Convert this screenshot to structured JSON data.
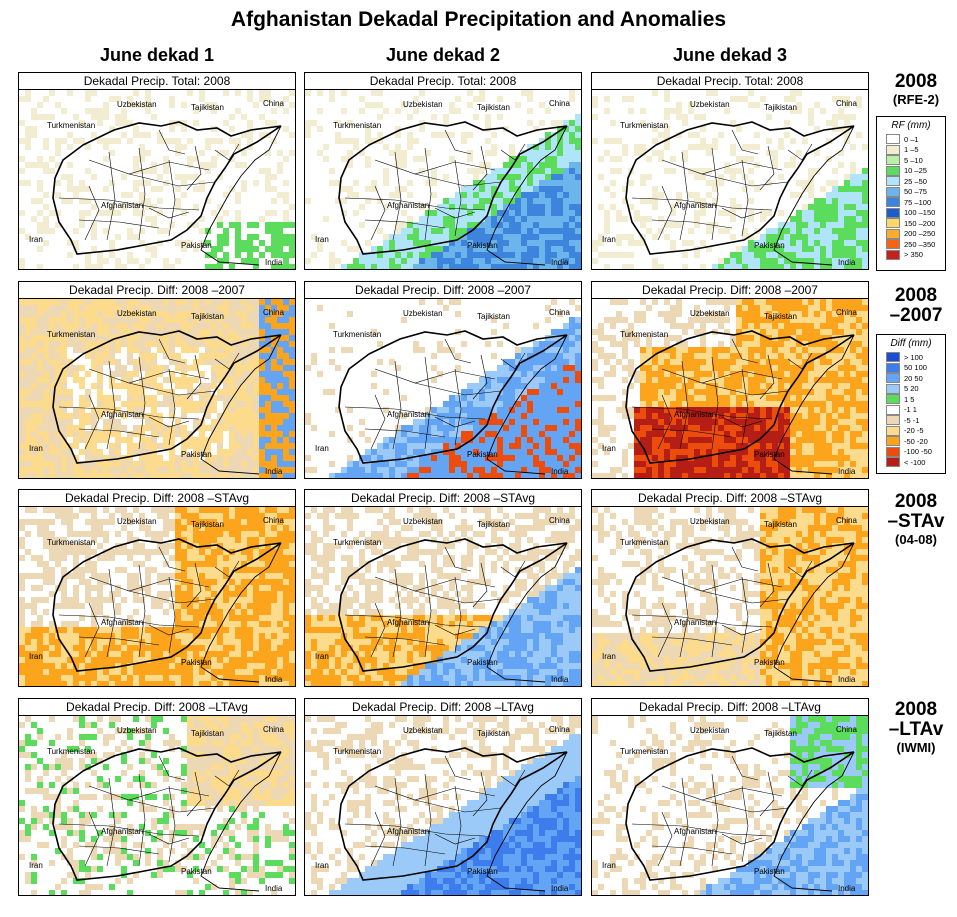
{
  "title": "Afghanistan Dekadal Precipitation and Anomalies",
  "columns": [
    "June dekad 1",
    "June dekad 2",
    "June dekad 3"
  ],
  "rows": [
    {
      "label": "2008",
      "sub": "(RFE-2)",
      "panel_title": "Dekadal Precip. Total: 2008"
    },
    {
      "label": "2008",
      "label2": "–2007",
      "panel_title": "Dekadal Precip. Diff:  2008 –2007"
    },
    {
      "label": "2008",
      "label2": "–STAv",
      "sub": "(04-08)",
      "panel_title": "Dekadal Precip. Diff:  2008 –STAvg"
    },
    {
      "label": "2008",
      "label2": "–LTAv",
      "sub": "(IWMI)",
      "panel_title": "Dekadal Precip. Diff:  2008 –LTAvg"
    }
  ],
  "place_labels": {
    "uzbekistan": "Uzbekistan",
    "tajikistan": "Tajikistan",
    "china": "China",
    "turkmenistan": "Turkmenistan",
    "afghanistan": "Afghanistan",
    "iran": "Iran",
    "pakistan": "Pakistan",
    "india": "India"
  },
  "legend_rf": {
    "title": "RF (mm)",
    "entries": [
      {
        "label": "0 –1",
        "color": "#ffffff"
      },
      {
        "label": "1 –5",
        "color": "#f2ecd0"
      },
      {
        "label": "5 –10",
        "color": "#b8f0a8"
      },
      {
        "label": "10 –25",
        "color": "#5cdc5c"
      },
      {
        "label": "25 –50",
        "color": "#b0e4f8"
      },
      {
        "label": "50 –75",
        "color": "#6cb4ec"
      },
      {
        "label": "75 –100",
        "color": "#3c84dc"
      },
      {
        "label": "100 –150",
        "color": "#1c5ccc"
      },
      {
        "label": "150 –200",
        "color": "#fcd868"
      },
      {
        "label": "200 –250",
        "color": "#fcac2c"
      },
      {
        "label": "250 –350",
        "color": "#f46414"
      },
      {
        "label": "> 350",
        "color": "#c81e1e"
      }
    ]
  },
  "legend_diff": {
    "title": "Diff (mm)",
    "entries": [
      {
        "label": "> 100",
        "color": "#1c4cd4"
      },
      {
        "label": "50  100",
        "color": "#3c7cec"
      },
      {
        "label": "20  50",
        "color": "#64a4f4"
      },
      {
        "label": "5  20",
        "color": "#9ccaf8"
      },
      {
        "label": "1  5",
        "color": "#5cdc5c"
      },
      {
        "label": "-1  1",
        "color": "#ffffff"
      },
      {
        "label": "-5  -1",
        "color": "#ecd8b4"
      },
      {
        "label": "-20  -5",
        "color": "#fcdc8c"
      },
      {
        "label": "-50  -20",
        "color": "#fca41c"
      },
      {
        "label": "-100  -50",
        "color": "#ec4c0c"
      },
      {
        "label": "< -100",
        "color": "#b41e14"
      }
    ]
  }
}
